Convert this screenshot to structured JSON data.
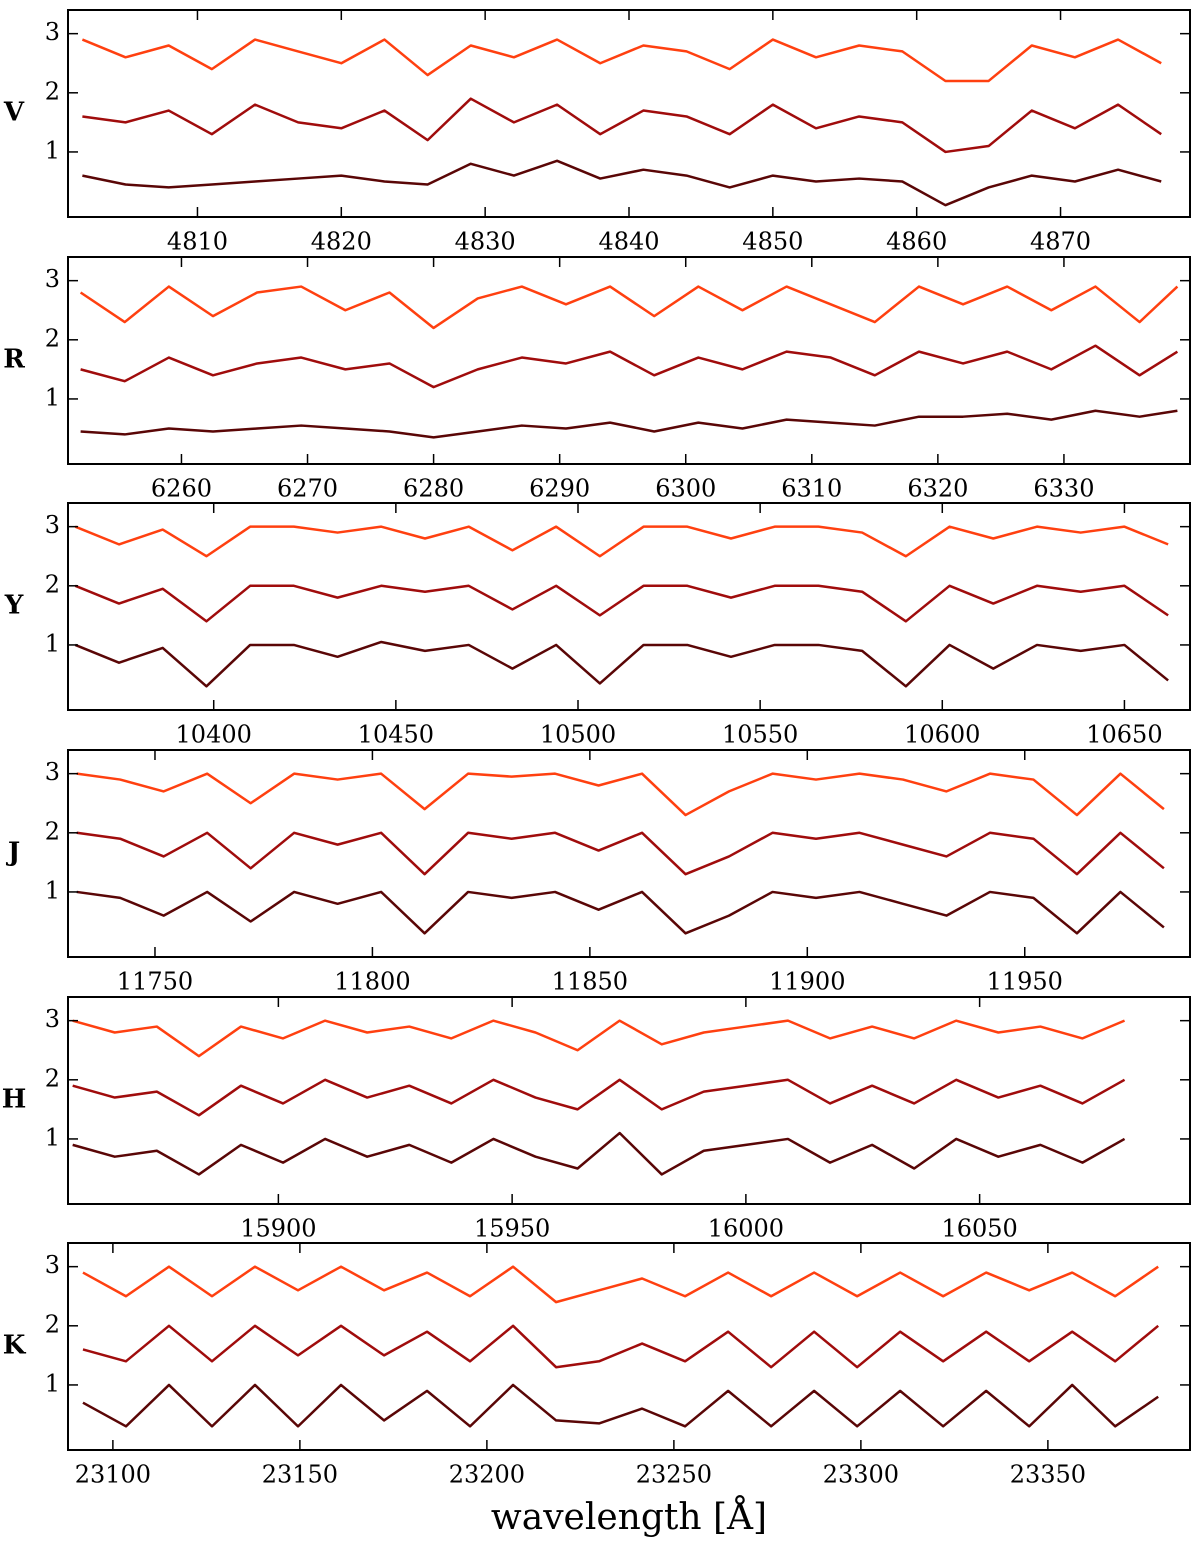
{
  "chart_data": [
    {
      "type": "line",
      "label": "V",
      "x": [
        4802,
        4805,
        4808,
        4811,
        4814,
        4817,
        4820,
        4823,
        4826,
        4829,
        4832,
        4835,
        4838,
        4841,
        4844,
        4847,
        4850,
        4853,
        4856,
        4859,
        4862,
        4865,
        4868,
        4871,
        4874,
        4877
      ],
      "series": [
        {
          "color": "#ff4010",
          "values": [
            2.9,
            2.6,
            2.8,
            2.4,
            2.9,
            2.7,
            2.5,
            2.9,
            2.3,
            2.8,
            2.6,
            2.9,
            2.5,
            2.8,
            2.7,
            2.4,
            2.9,
            2.6,
            2.8,
            2.7,
            2.2,
            2.2,
            2.8,
            2.6,
            2.9,
            2.5
          ]
        },
        {
          "color": "#a00c0c",
          "values": [
            1.6,
            1.5,
            1.7,
            1.3,
            1.8,
            1.5,
            1.4,
            1.7,
            1.2,
            1.9,
            1.5,
            1.8,
            1.3,
            1.7,
            1.6,
            1.3,
            1.8,
            1.4,
            1.6,
            1.5,
            1.0,
            1.1,
            1.7,
            1.4,
            1.8,
            1.3
          ]
        },
        {
          "color": "#5a0606",
          "values": [
            0.6,
            0.45,
            0.4,
            0.45,
            0.5,
            0.55,
            0.6,
            0.5,
            0.45,
            0.8,
            0.6,
            0.85,
            0.55,
            0.7,
            0.6,
            0.4,
            0.6,
            0.5,
            0.55,
            0.5,
            0.1,
            0.4,
            0.6,
            0.5,
            0.7,
            0.5
          ]
        }
      ],
      "xlim": [
        4801,
        4879
      ],
      "ylim": [
        -0.1,
        3.4
      ],
      "xticks": [
        4810,
        4820,
        4830,
        4840,
        4850,
        4860,
        4870
      ],
      "yticks": [
        1,
        2,
        3
      ]
    },
    {
      "type": "line",
      "label": "R",
      "x": [
        6252,
        6255.5,
        6259,
        6262.5,
        6266,
        6269.5,
        6273,
        6276.5,
        6280,
        6283.5,
        6287,
        6290.5,
        6294,
        6297.5,
        6301,
        6304.5,
        6308,
        6311.5,
        6315,
        6318.5,
        6322,
        6325.5,
        6329,
        6332.5,
        6336,
        6339
      ],
      "series": [
        {
          "color": "#ff4010",
          "values": [
            2.8,
            2.3,
            2.9,
            2.4,
            2.8,
            2.9,
            2.5,
            2.8,
            2.2,
            2.7,
            2.9,
            2.6,
            2.9,
            2.4,
            2.9,
            2.5,
            2.9,
            2.6,
            2.3,
            2.9,
            2.6,
            2.9,
            2.5,
            2.9,
            2.3,
            2.9
          ]
        },
        {
          "color": "#a00c0c",
          "values": [
            1.5,
            1.3,
            1.7,
            1.4,
            1.6,
            1.7,
            1.5,
            1.6,
            1.2,
            1.5,
            1.7,
            1.6,
            1.8,
            1.4,
            1.7,
            1.5,
            1.8,
            1.7,
            1.4,
            1.8,
            1.6,
            1.8,
            1.5,
            1.9,
            1.4,
            1.8
          ]
        },
        {
          "color": "#5a0606",
          "values": [
            0.45,
            0.4,
            0.5,
            0.45,
            0.5,
            0.55,
            0.5,
            0.45,
            0.35,
            0.45,
            0.55,
            0.5,
            0.6,
            0.45,
            0.6,
            0.5,
            0.65,
            0.6,
            0.55,
            0.7,
            0.7,
            0.75,
            0.65,
            0.8,
            0.7,
            0.8
          ]
        }
      ],
      "xlim": [
        6251,
        6340
      ],
      "ylim": [
        -0.1,
        3.4
      ],
      "xticks": [
        6260,
        6270,
        6280,
        6290,
        6300,
        6310,
        6320,
        6330
      ],
      "yticks": [
        1,
        2,
        3
      ]
    },
    {
      "type": "line",
      "label": "Y",
      "x": [
        10362,
        10374,
        10386,
        10398,
        10410,
        10422,
        10434,
        10446,
        10458,
        10470,
        10482,
        10494,
        10506,
        10518,
        10530,
        10542,
        10554,
        10566,
        10578,
        10590,
        10602,
        10614,
        10626,
        10638,
        10650,
        10662
      ],
      "series": [
        {
          "color": "#ff4010",
          "values": [
            3.0,
            2.7,
            2.95,
            2.5,
            3.0,
            3.0,
            2.9,
            3.0,
            2.8,
            3.0,
            2.6,
            3.0,
            2.5,
            3.0,
            3.0,
            2.8,
            3.0,
            3.0,
            2.9,
            2.5,
            3.0,
            2.8,
            3.0,
            2.9,
            3.0,
            2.7
          ]
        },
        {
          "color": "#a00c0c",
          "values": [
            2.0,
            1.7,
            1.95,
            1.4,
            2.0,
            2.0,
            1.8,
            2.0,
            1.9,
            2.0,
            1.6,
            2.0,
            1.5,
            2.0,
            2.0,
            1.8,
            2.0,
            2.0,
            1.9,
            1.4,
            2.0,
            1.7,
            2.0,
            1.9,
            2.0,
            1.5
          ]
        },
        {
          "color": "#5a0606",
          "values": [
            1.0,
            0.7,
            0.95,
            0.3,
            1.0,
            1.0,
            0.8,
            1.05,
            0.9,
            1.0,
            0.6,
            1.0,
            0.35,
            1.0,
            1.0,
            0.8,
            1.0,
            1.0,
            0.9,
            0.3,
            1.0,
            0.6,
            1.0,
            0.9,
            1.0,
            0.4
          ]
        }
      ],
      "xlim": [
        10360,
        10668
      ],
      "ylim": [
        -0.1,
        3.4
      ],
      "xticks": [
        10400,
        10450,
        10500,
        10550,
        10600,
        10650
      ],
      "yticks": [
        1,
        2,
        3
      ]
    },
    {
      "type": "line",
      "label": "J",
      "x": [
        11732,
        11742,
        11752,
        11762,
        11772,
        11782,
        11792,
        11802,
        11812,
        11822,
        11832,
        11842,
        11852,
        11862,
        11872,
        11882,
        11892,
        11902,
        11912,
        11922,
        11932,
        11942,
        11952,
        11962,
        11972,
        11982
      ],
      "series": [
        {
          "color": "#ff4010",
          "values": [
            3.0,
            2.9,
            2.7,
            3.0,
            2.5,
            3.0,
            2.9,
            3.0,
            2.4,
            3.0,
            2.95,
            3.0,
            2.8,
            3.0,
            2.3,
            2.7,
            3.0,
            2.9,
            3.0,
            2.9,
            2.7,
            3.0,
            2.9,
            2.3,
            3.0,
            2.4
          ]
        },
        {
          "color": "#a00c0c",
          "values": [
            2.0,
            1.9,
            1.6,
            2.0,
            1.4,
            2.0,
            1.8,
            2.0,
            1.3,
            2.0,
            1.9,
            2.0,
            1.7,
            2.0,
            1.3,
            1.6,
            2.0,
            1.9,
            2.0,
            1.8,
            1.6,
            2.0,
            1.9,
            1.3,
            2.0,
            1.4
          ]
        },
        {
          "color": "#5a0606",
          "values": [
            1.0,
            0.9,
            0.6,
            1.0,
            0.5,
            1.0,
            0.8,
            1.0,
            0.3,
            1.0,
            0.9,
            1.0,
            0.7,
            1.0,
            0.3,
            0.6,
            1.0,
            0.9,
            1.0,
            0.8,
            0.6,
            1.0,
            0.9,
            0.3,
            1.0,
            0.4
          ]
        }
      ],
      "xlim": [
        11730,
        11988
      ],
      "ylim": [
        -0.1,
        3.4
      ],
      "xticks": [
        11750,
        11800,
        11850,
        11900,
        11950
      ],
      "yticks": [
        1,
        2,
        3
      ]
    },
    {
      "type": "line",
      "label": "H",
      "x": [
        15856,
        15865,
        15874,
        15883,
        15892,
        15901,
        15910,
        15919,
        15928,
        15937,
        15946,
        15955,
        15964,
        15973,
        15982,
        15991,
        16000,
        16009,
        16018,
        16027,
        16036,
        16045,
        16054,
        16063,
        16072,
        16081
      ],
      "series": [
        {
          "color": "#ff4010",
          "values": [
            3.0,
            2.8,
            2.9,
            2.4,
            2.9,
            2.7,
            3.0,
            2.8,
            2.9,
            2.7,
            3.0,
            2.8,
            2.5,
            3.0,
            2.6,
            2.8,
            2.9,
            3.0,
            2.7,
            2.9,
            2.7,
            3.0,
            2.8,
            2.9,
            2.7,
            3.0
          ]
        },
        {
          "color": "#a00c0c",
          "values": [
            1.9,
            1.7,
            1.8,
            1.4,
            1.9,
            1.6,
            2.0,
            1.7,
            1.9,
            1.6,
            2.0,
            1.7,
            1.5,
            2.0,
            1.5,
            1.8,
            1.9,
            2.0,
            1.6,
            1.9,
            1.6,
            2.0,
            1.7,
            1.9,
            1.6,
            2.0
          ]
        },
        {
          "color": "#5a0606",
          "values": [
            0.9,
            0.7,
            0.8,
            0.4,
            0.9,
            0.6,
            1.0,
            0.7,
            0.9,
            0.6,
            1.0,
            0.7,
            0.5,
            1.1,
            0.4,
            0.8,
            0.9,
            1.0,
            0.6,
            0.9,
            0.5,
            1.0,
            0.7,
            0.9,
            0.6,
            1.0
          ]
        }
      ],
      "xlim": [
        15855,
        16095
      ],
      "ylim": [
        -0.1,
        3.4
      ],
      "xticks": [
        15900,
        15950,
        16000,
        16050
      ],
      "yticks": [
        1,
        2,
        3
      ]
    },
    {
      "type": "line",
      "label": "K",
      "x": [
        23092,
        23103.5,
        23115,
        23126.5,
        23138,
        23149.5,
        23161,
        23172.5,
        23184,
        23195.5,
        23207,
        23218.5,
        23230,
        23241.5,
        23253,
        23264.5,
        23276,
        23287.5,
        23299,
        23310.5,
        23322,
        23333.5,
        23345,
        23356.5,
        23368,
        23379.5
      ],
      "series": [
        {
          "color": "#ff4010",
          "values": [
            2.9,
            2.5,
            3.0,
            2.5,
            3.0,
            2.6,
            3.0,
            2.6,
            2.9,
            2.5,
            3.0,
            2.4,
            2.6,
            2.8,
            2.5,
            2.9,
            2.5,
            2.9,
            2.5,
            2.9,
            2.5,
            2.9,
            2.6,
            2.9,
            2.5,
            3.0
          ]
        },
        {
          "color": "#a00c0c",
          "values": [
            1.6,
            1.4,
            2.0,
            1.4,
            2.0,
            1.5,
            2.0,
            1.5,
            1.9,
            1.4,
            2.0,
            1.3,
            1.4,
            1.7,
            1.4,
            1.9,
            1.3,
            1.9,
            1.3,
            1.9,
            1.4,
            1.9,
            1.4,
            1.9,
            1.4,
            2.0
          ]
        },
        {
          "color": "#5a0606",
          "values": [
            0.7,
            0.3,
            1.0,
            0.3,
            1.0,
            0.3,
            1.0,
            0.4,
            0.9,
            0.3,
            1.0,
            0.4,
            0.35,
            0.6,
            0.3,
            0.9,
            0.3,
            0.9,
            0.3,
            0.9,
            0.3,
            0.9,
            0.3,
            1.0,
            0.3,
            0.8
          ]
        }
      ],
      "xlim": [
        23088,
        23388
      ],
      "ylim": [
        -0.1,
        3.4
      ],
      "xticks": [
        23100,
        23150,
        23200,
        23250,
        23300,
        23350
      ],
      "yticks": [
        1,
        2,
        3
      ],
      "xlabel": "wavelength [Å]"
    }
  ]
}
